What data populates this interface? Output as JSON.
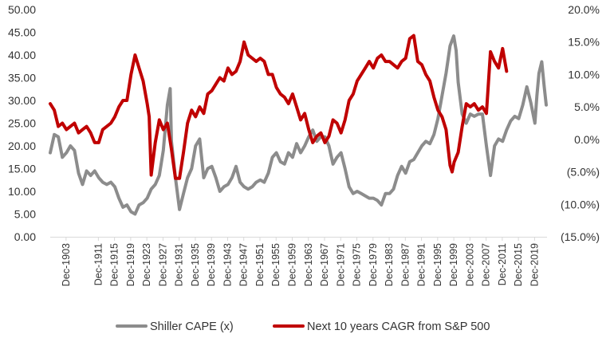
{
  "chart_data": {
    "type": "line",
    "title": "",
    "xlabel": "",
    "y_left_label": "",
    "y_right_label": "",
    "x_range": [
      1900.0,
      2023.0
    ],
    "y_left": {
      "range": [
        0,
        50
      ],
      "ticks": [
        0,
        5,
        10,
        15,
        20,
        25,
        30,
        35,
        40,
        45,
        50
      ],
      "tick_labels": [
        "0.00",
        "5.00",
        "10.00",
        "15.00",
        "20.00",
        "25.00",
        "30.00",
        "35.00",
        "40.00",
        "45.00",
        "50.00"
      ]
    },
    "y_right": {
      "range": [
        -0.15,
        0.2
      ],
      "ticks": [
        -0.15,
        -0.1,
        -0.05,
        0.0,
        0.05,
        0.1,
        0.15,
        0.2
      ],
      "tick_labels": [
        "(15.0%)",
        "(10.0%)",
        "(5.0%)",
        "0.0%",
        "5.0%",
        "10.0%",
        "15.0%",
        "20.0%"
      ]
    },
    "x_ticks": [
      {
        "x": 1903.92,
        "label": "Dec-1903"
      },
      {
        "x": 1911.92,
        "label": "Dec-1911"
      },
      {
        "x": 1915.92,
        "label": "Dec-1915"
      },
      {
        "x": 1919.92,
        "label": "Dec-1919"
      },
      {
        "x": 1923.92,
        "label": "Dec-1923"
      },
      {
        "x": 1927.92,
        "label": "Dec-1927"
      },
      {
        "x": 1931.92,
        "label": "Dec-1931"
      },
      {
        "x": 1935.92,
        "label": "Dec-1935"
      },
      {
        "x": 1939.92,
        "label": "Dec-1939"
      },
      {
        "x": 1943.92,
        "label": "Dec-1943"
      },
      {
        "x": 1947.92,
        "label": "Dec-1947"
      },
      {
        "x": 1951.92,
        "label": "Dec-1951"
      },
      {
        "x": 1955.92,
        "label": "Dec-1955"
      },
      {
        "x": 1959.92,
        "label": "Dec-1959"
      },
      {
        "x": 1963.92,
        "label": "Dec-1963"
      },
      {
        "x": 1967.92,
        "label": "Dec-1967"
      },
      {
        "x": 1971.92,
        "label": "Dec-1971"
      },
      {
        "x": 1975.92,
        "label": "Dec-1975"
      },
      {
        "x": 1979.92,
        "label": "Dec-1979"
      },
      {
        "x": 1983.92,
        "label": "Dec-1983"
      },
      {
        "x": 1987.92,
        "label": "Dec-1987"
      },
      {
        "x": 1991.92,
        "label": "Dec-1991"
      },
      {
        "x": 1995.92,
        "label": "Dec-1995"
      },
      {
        "x": 1999.92,
        "label": "Dec-1999"
      },
      {
        "x": 2003.92,
        "label": "Dec-2003"
      },
      {
        "x": 2007.92,
        "label": "Dec-2007"
      },
      {
        "x": 2011.92,
        "label": "Dec-2011"
      },
      {
        "x": 2015.92,
        "label": "Dec-2015"
      },
      {
        "x": 2019.92,
        "label": "Dec-2019"
      }
    ],
    "series": [
      {
        "name": "Shiller CAPE (x)",
        "axis": "left",
        "color": "#8c8c8c",
        "points": [
          [
            1900.0,
            18.5
          ],
          [
            1901.0,
            22.5
          ],
          [
            1902.0,
            22.0
          ],
          [
            1903.0,
            17.5
          ],
          [
            1904.0,
            18.5
          ],
          [
            1905.0,
            20.0
          ],
          [
            1906.0,
            19.0
          ],
          [
            1907.0,
            14.0
          ],
          [
            1908.0,
            11.5
          ],
          [
            1909.0,
            14.5
          ],
          [
            1910.0,
            13.5
          ],
          [
            1911.0,
            14.5
          ],
          [
            1912.0,
            13.0
          ],
          [
            1913.0,
            12.0
          ],
          [
            1914.0,
            11.5
          ],
          [
            1915.0,
            12.0
          ],
          [
            1916.0,
            11.0
          ],
          [
            1917.0,
            8.5
          ],
          [
            1918.0,
            6.5
          ],
          [
            1919.0,
            7.0
          ],
          [
            1920.0,
            5.5
          ],
          [
            1921.0,
            5.0
          ],
          [
            1922.0,
            7.0
          ],
          [
            1923.0,
            7.5
          ],
          [
            1924.0,
            8.5
          ],
          [
            1925.0,
            10.5
          ],
          [
            1926.0,
            11.5
          ],
          [
            1927.0,
            13.5
          ],
          [
            1928.0,
            19.0
          ],
          [
            1929.0,
            29.0
          ],
          [
            1929.7,
            32.6
          ],
          [
            1930.0,
            21.0
          ],
          [
            1931.0,
            13.0
          ],
          [
            1932.0,
            6.0
          ],
          [
            1933.0,
            9.5
          ],
          [
            1934.0,
            13.0
          ],
          [
            1935.0,
            15.0
          ],
          [
            1936.0,
            20.0
          ],
          [
            1937.0,
            21.5
          ],
          [
            1938.0,
            13.0
          ],
          [
            1939.0,
            15.0
          ],
          [
            1940.0,
            15.5
          ],
          [
            1941.0,
            13.0
          ],
          [
            1942.0,
            10.0
          ],
          [
            1943.0,
            11.0
          ],
          [
            1944.0,
            11.5
          ],
          [
            1945.0,
            13.0
          ],
          [
            1946.0,
            15.5
          ],
          [
            1947.0,
            12.0
          ],
          [
            1948.0,
            11.0
          ],
          [
            1949.0,
            10.5
          ],
          [
            1950.0,
            11.0
          ],
          [
            1951.0,
            12.0
          ],
          [
            1952.0,
            12.5
          ],
          [
            1953.0,
            12.0
          ],
          [
            1954.0,
            14.0
          ],
          [
            1955.0,
            17.5
          ],
          [
            1956.0,
            18.5
          ],
          [
            1957.0,
            16.5
          ],
          [
            1958.0,
            16.0
          ],
          [
            1959.0,
            18.5
          ],
          [
            1960.0,
            17.5
          ],
          [
            1961.0,
            20.5
          ],
          [
            1962.0,
            18.5
          ],
          [
            1963.0,
            20.0
          ],
          [
            1964.0,
            22.0
          ],
          [
            1965.0,
            23.5
          ],
          [
            1966.0,
            21.0
          ],
          [
            1967.0,
            22.0
          ],
          [
            1968.0,
            22.0
          ],
          [
            1969.0,
            20.0
          ],
          [
            1970.0,
            16.0
          ],
          [
            1971.0,
            17.5
          ],
          [
            1972.0,
            18.5
          ],
          [
            1973.0,
            15.0
          ],
          [
            1974.0,
            11.0
          ],
          [
            1975.0,
            9.5
          ],
          [
            1976.0,
            10.0
          ],
          [
            1977.0,
            9.5
          ],
          [
            1978.0,
            9.0
          ],
          [
            1979.0,
            8.5
          ],
          [
            1980.0,
            8.5
          ],
          [
            1981.0,
            8.0
          ],
          [
            1982.0,
            7.0
          ],
          [
            1983.0,
            9.5
          ],
          [
            1984.0,
            9.5
          ],
          [
            1985.0,
            10.5
          ],
          [
            1986.0,
            13.5
          ],
          [
            1987.0,
            15.5
          ],
          [
            1988.0,
            14.0
          ],
          [
            1989.0,
            16.5
          ],
          [
            1990.0,
            17.0
          ],
          [
            1991.0,
            18.5
          ],
          [
            1992.0,
            20.0
          ],
          [
            1993.0,
            21.0
          ],
          [
            1994.0,
            20.5
          ],
          [
            1995.0,
            22.5
          ],
          [
            1996.0,
            26.0
          ],
          [
            1997.0,
            31.0
          ],
          [
            1998.0,
            36.0
          ],
          [
            1999.0,
            42.0
          ],
          [
            1999.9,
            44.2
          ],
          [
            2000.5,
            41.0
          ],
          [
            2001.0,
            34.0
          ],
          [
            2002.0,
            27.0
          ],
          [
            2003.0,
            25.0
          ],
          [
            2004.0,
            27.0
          ],
          [
            2005.0,
            26.5
          ],
          [
            2006.0,
            27.0
          ],
          [
            2007.0,
            27.0
          ],
          [
            2008.0,
            20.0
          ],
          [
            2009.0,
            13.5
          ],
          [
            2010.0,
            20.0
          ],
          [
            2011.0,
            21.5
          ],
          [
            2012.0,
            21.0
          ],
          [
            2013.0,
            23.5
          ],
          [
            2014.0,
            25.5
          ],
          [
            2015.0,
            26.5
          ],
          [
            2016.0,
            26.0
          ],
          [
            2017.0,
            29.0
          ],
          [
            2018.0,
            33.0
          ],
          [
            2019.0,
            29.5
          ],
          [
            2020.0,
            25.0
          ],
          [
            2020.5,
            31.0
          ],
          [
            2021.0,
            36.0
          ],
          [
            2021.7,
            38.5
          ],
          [
            2022.3,
            33.0
          ],
          [
            2022.8,
            29.0
          ]
        ]
      },
      {
        "name": "Next 10 years CAGR from S&P 500",
        "axis": "right",
        "color": "#c00000",
        "points": [
          [
            1900.0,
            0.055
          ],
          [
            1901.0,
            0.045
          ],
          [
            1902.0,
            0.02
          ],
          [
            1903.0,
            0.025
          ],
          [
            1904.0,
            0.015
          ],
          [
            1905.0,
            0.02
          ],
          [
            1906.0,
            0.025
          ],
          [
            1907.0,
            0.01
          ],
          [
            1908.0,
            0.015
          ],
          [
            1909.0,
            0.02
          ],
          [
            1910.0,
            0.01
          ],
          [
            1911.0,
            -0.005
          ],
          [
            1912.0,
            -0.005
          ],
          [
            1913.0,
            0.015
          ],
          [
            1914.0,
            0.02
          ],
          [
            1915.0,
            0.025
          ],
          [
            1916.0,
            0.035
          ],
          [
            1917.0,
            0.05
          ],
          [
            1918.0,
            0.06
          ],
          [
            1919.0,
            0.06
          ],
          [
            1920.0,
            0.1
          ],
          [
            1921.0,
            0.13
          ],
          [
            1922.0,
            0.11
          ],
          [
            1923.0,
            0.09
          ],
          [
            1924.0,
            0.055
          ],
          [
            1924.5,
            0.035
          ],
          [
            1925.0,
            -0.055
          ],
          [
            1926.0,
            -0.005
          ],
          [
            1927.0,
            0.03
          ],
          [
            1928.0,
            0.015
          ],
          [
            1929.0,
            0.025
          ],
          [
            1930.0,
            -0.015
          ],
          [
            1931.0,
            -0.06
          ],
          [
            1932.0,
            -0.06
          ],
          [
            1933.0,
            -0.02
          ],
          [
            1934.0,
            0.025
          ],
          [
            1935.0,
            0.045
          ],
          [
            1936.0,
            0.035
          ],
          [
            1937.0,
            0.05
          ],
          [
            1938.0,
            0.04
          ],
          [
            1939.0,
            0.07
          ],
          [
            1940.0,
            0.075
          ],
          [
            1941.0,
            0.085
          ],
          [
            1942.0,
            0.095
          ],
          [
            1943.0,
            0.09
          ],
          [
            1944.0,
            0.11
          ],
          [
            1945.0,
            0.1
          ],
          [
            1946.0,
            0.105
          ],
          [
            1947.0,
            0.12
          ],
          [
            1948.0,
            0.15
          ],
          [
            1949.0,
            0.13
          ],
          [
            1950.0,
            0.125
          ],
          [
            1951.0,
            0.12
          ],
          [
            1952.0,
            0.125
          ],
          [
            1953.0,
            0.12
          ],
          [
            1954.0,
            0.1
          ],
          [
            1955.0,
            0.1
          ],
          [
            1956.0,
            0.08
          ],
          [
            1957.0,
            0.07
          ],
          [
            1958.0,
            0.065
          ],
          [
            1959.0,
            0.055
          ],
          [
            1960.0,
            0.07
          ],
          [
            1961.0,
            0.05
          ],
          [
            1962.0,
            0.03
          ],
          [
            1963.0,
            0.04
          ],
          [
            1964.0,
            0.015
          ],
          [
            1965.0,
            -0.005
          ],
          [
            1966.0,
            0.005
          ],
          [
            1967.0,
            0.01
          ],
          [
            1968.0,
            -0.005
          ],
          [
            1969.0,
            0.005
          ],
          [
            1970.0,
            0.03
          ],
          [
            1971.0,
            0.025
          ],
          [
            1972.0,
            0.01
          ],
          [
            1973.0,
            0.03
          ],
          [
            1974.0,
            0.06
          ],
          [
            1975.0,
            0.07
          ],
          [
            1976.0,
            0.09
          ],
          [
            1977.0,
            0.1
          ],
          [
            1978.0,
            0.11
          ],
          [
            1979.0,
            0.12
          ],
          [
            1980.0,
            0.11
          ],
          [
            1981.0,
            0.125
          ],
          [
            1982.0,
            0.13
          ],
          [
            1983.0,
            0.12
          ],
          [
            1984.0,
            0.12
          ],
          [
            1985.0,
            0.115
          ],
          [
            1986.0,
            0.11
          ],
          [
            1987.0,
            0.12
          ],
          [
            1988.0,
            0.125
          ],
          [
            1989.0,
            0.155
          ],
          [
            1990.0,
            0.16
          ],
          [
            1991.0,
            0.12
          ],
          [
            1992.0,
            0.115
          ],
          [
            1993.0,
            0.1
          ],
          [
            1994.0,
            0.09
          ],
          [
            1995.0,
            0.065
          ],
          [
            1996.0,
            0.045
          ],
          [
            1997.0,
            0.035
          ],
          [
            1998.0,
            0.015
          ],
          [
            1999.0,
            -0.04
          ],
          [
            1999.5,
            -0.05
          ],
          [
            2000.0,
            -0.035
          ],
          [
            2001.0,
            -0.02
          ],
          [
            2002.0,
            0.02
          ],
          [
            2003.0,
            0.055
          ],
          [
            2004.0,
            0.05
          ],
          [
            2005.0,
            0.055
          ],
          [
            2006.0,
            0.045
          ],
          [
            2007.0,
            0.05
          ],
          [
            2008.0,
            0.04
          ],
          [
            2009.0,
            0.135
          ],
          [
            2010.0,
            0.12
          ],
          [
            2011.0,
            0.11
          ],
          [
            2012.0,
            0.14
          ],
          [
            2013.0,
            0.105
          ]
        ]
      }
    ],
    "legend": {
      "position": "bottom",
      "entries": [
        "Shiller CAPE (x)",
        "Next 10 years CAGR from S&P 500"
      ]
    },
    "grid": false
  }
}
